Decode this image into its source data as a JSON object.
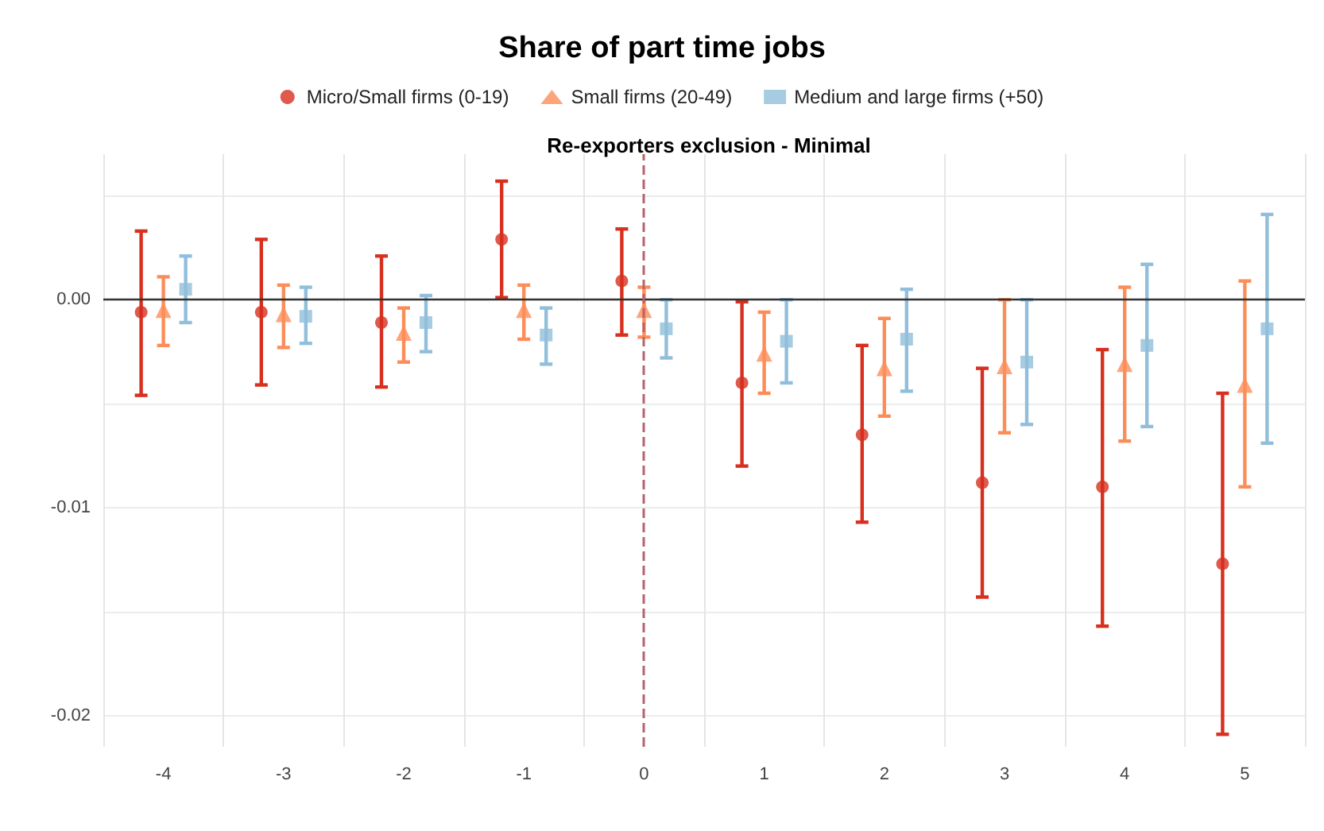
{
  "chart_data": {
    "type": "scatter",
    "title": "Share of part time jobs",
    "subtitle": "Re-exporters exclusion - Minimal",
    "categories": [
      "-4",
      "-3",
      "-2",
      "-1",
      "0",
      "1",
      "2",
      "3",
      "4",
      "5"
    ],
    "series": [
      {
        "name": "Micro/Small firms (0-19)",
        "color": "#d7301f",
        "marker": "circle",
        "values": [
          -0.0006,
          -0.0006,
          -0.0011,
          0.0029,
          0.0009,
          -0.004,
          -0.0065,
          -0.0088,
          -0.009,
          -0.0127
        ],
        "errors": [
          [
            -0.0046,
            0.0033
          ],
          [
            -0.0041,
            0.0029
          ],
          [
            -0.0042,
            0.0021
          ],
          [
            0.0001,
            0.0057
          ],
          [
            -0.0017,
            0.0034
          ],
          [
            -0.008,
            -0.0001
          ],
          [
            -0.0107,
            -0.0022
          ],
          [
            -0.0143,
            -0.0033
          ],
          [
            -0.0157,
            -0.0024
          ],
          [
            -0.0209,
            -0.0045
          ]
        ]
      },
      {
        "name": "Small firms (20-49)",
        "color": "#fc8d59",
        "marker": "triangle",
        "values": [
          -0.0005,
          -0.0007,
          -0.0016,
          -0.0005,
          -0.0005,
          -0.0026,
          -0.0033,
          -0.0032,
          -0.0031,
          -0.0041
        ],
        "errors": [
          [
            -0.0022,
            0.0011
          ],
          [
            -0.0023,
            0.0007
          ],
          [
            -0.003,
            -0.0004
          ],
          [
            -0.0019,
            0.0007
          ],
          [
            -0.0018,
            0.0006
          ],
          [
            -0.0045,
            -0.0006
          ],
          [
            -0.0056,
            -0.0009
          ],
          [
            -0.0064,
            0.0
          ],
          [
            -0.0068,
            0.0006
          ],
          [
            -0.009,
            0.0009
          ]
        ]
      },
      {
        "name": "Medium and large firms (+50)",
        "color": "#91bfdb",
        "marker": "square",
        "values": [
          0.0005,
          -0.0008,
          -0.0011,
          -0.0017,
          -0.0014,
          -0.002,
          -0.0019,
          -0.003,
          -0.0022,
          -0.0014
        ],
        "errors": [
          [
            -0.0011,
            0.0021
          ],
          [
            -0.0021,
            0.0006
          ],
          [
            -0.0025,
            0.0002
          ],
          [
            -0.0031,
            -0.0004
          ],
          [
            -0.0028,
            0.0
          ],
          [
            -0.004,
            0.0
          ],
          [
            -0.0044,
            0.0005
          ],
          [
            -0.006,
            0.0
          ],
          [
            -0.0061,
            0.0017
          ],
          [
            -0.0069,
            0.0041
          ]
        ]
      }
    ],
    "ylim": [
      -0.0215,
      0.007
    ],
    "yticks": [
      {
        "value": -0.02,
        "label": "-0.02"
      },
      {
        "value": -0.015,
        "label": null
      },
      {
        "value": -0.01,
        "label": "-0.01"
      },
      {
        "value": -0.005,
        "label": null
      },
      {
        "value": 0,
        "label": "0.00"
      },
      {
        "value": 0.005,
        "label": null
      }
    ],
    "ref_lines": [
      {
        "axis": "y",
        "value": 0,
        "label": null,
        "color": "#333333",
        "line_style": "solid"
      },
      {
        "axis": "x",
        "value": "0",
        "label": null,
        "color": "#b5646b",
        "line_style": "dashed"
      }
    ],
    "grid": true,
    "legend": "top"
  }
}
